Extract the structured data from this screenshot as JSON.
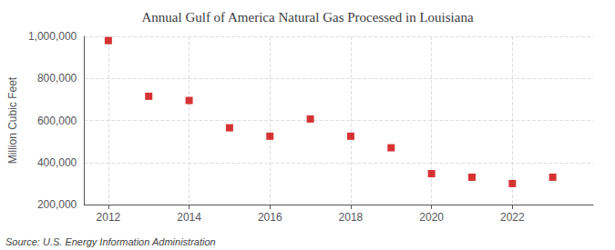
{
  "chart_data": {
    "type": "scatter",
    "title": "Annual Gulf of America Natural Gas Processed in Louisiana",
    "ylabel": "Million Cubic Feet",
    "annotation": "Source: U.S. Energy Information Administration",
    "x": [
      2012,
      2013,
      2014,
      2015,
      2016,
      2017,
      2018,
      2019,
      2020,
      2021,
      2022,
      2023
    ],
    "values": [
      980000,
      715000,
      695000,
      565000,
      525000,
      607000,
      525000,
      470000,
      347000,
      330000,
      300000,
      330000
    ],
    "color": "#cc0000",
    "marker": "square",
    "xlim": [
      2011.4,
      2024.0
    ],
    "xticks": [
      2012,
      2014,
      2016,
      2018,
      2020,
      2022
    ],
    "ylim": [
      200000,
      1000000
    ],
    "yticks": [
      {
        "value": 200000,
        "label": "200,000"
      },
      {
        "value": 400000,
        "label": "400,000"
      },
      {
        "value": 600000,
        "label": "600,000"
      },
      {
        "value": 800000,
        "label": "800,000"
      },
      {
        "value": 1000000,
        "label": "1,000,000"
      }
    ],
    "grid": true
  }
}
